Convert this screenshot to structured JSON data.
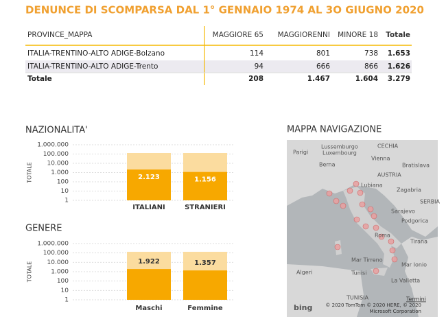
{
  "title": "DENUNCE DI SCOMPARSA  DAL  1° GENNAIO 1974 AL 3O GIUGNO 2020",
  "table": {
    "columns": [
      "PROVINCE_MAPPA",
      "MAGGIORE 65",
      "MAGGIORENNI",
      "MINORE 18",
      "Totale"
    ],
    "rows": [
      [
        "ITALIA-TRENTINO-ALTO ADIGE-Bolzano",
        "114",
        "801",
        "738",
        "1.653"
      ],
      [
        "ITALIA-TRENTINO-ALTO ADIGE-Trento",
        "94",
        "666",
        "866",
        "1.626"
      ]
    ],
    "total": [
      "Totale",
      "208",
      "1.467",
      "1.604",
      "3.279"
    ]
  },
  "chart_data": [
    {
      "type": "bar",
      "title": "NAZIONALITA'",
      "y_label": "TOTALE",
      "log_scale": true,
      "grid": true,
      "categories": [
        "ITALIANI",
        "STRANIERI"
      ],
      "values": [
        2123,
        1156
      ],
      "value_labels": [
        "2.123",
        "1.156"
      ],
      "label_position": "inside",
      "color": "#f7a800",
      "track_color": "#fbdc9f",
      "ylim": [
        1,
        1000000
      ],
      "yticks": [
        1,
        10,
        100,
        {
          "value": 1000,
          "label": "1.000"
        },
        {
          "value": 10000,
          "label": "10.000"
        },
        {
          "value": 100000,
          "label": "100.000"
        },
        {
          "value": 1000000,
          "label": "1.000.000"
        }
      ]
    },
    {
      "type": "bar",
      "title": "GENERE",
      "y_label": "TOTALE",
      "log_scale": true,
      "grid": true,
      "categories": [
        "Maschi",
        "Femmine"
      ],
      "values": [
        1922,
        1357
      ],
      "value_labels": [
        "1.922",
        "1.357"
      ],
      "label_position": "above",
      "color": "#f7a800",
      "track_color": "#fbdc9f",
      "ylim": [
        1,
        1000000
      ],
      "yticks": [
        1,
        10,
        100,
        {
          "value": 1000,
          "label": "1.000"
        },
        {
          "value": 10000,
          "label": "10.000"
        },
        {
          "value": 100000,
          "label": "100.000"
        },
        {
          "value": 1000000,
          "label": "1.000.000"
        }
      ]
    }
  ],
  "map": {
    "title": "MAPPA NAVIGAZIONE",
    "labels": [
      "Parigi",
      "Lussemburgo",
      "Luxembourg",
      "CECHIA",
      "Vienna",
      "Bratislava",
      "Berna",
      "AUSTRIA",
      "Lubiana",
      "Zagabria",
      "SERBIA",
      "Sarajevo",
      "Podgorica",
      "Roma",
      "Tirana",
      "Mar Tirreno",
      "Mar Ionio",
      "Algeri",
      "Tunisi",
      "La Valletta",
      "TUNISIA"
    ],
    "attribution": "© 2020 TomTom © 2020 HERE, © 2020 Microsoft Corporation",
    "terms": "Termini",
    "logo": "bing"
  }
}
